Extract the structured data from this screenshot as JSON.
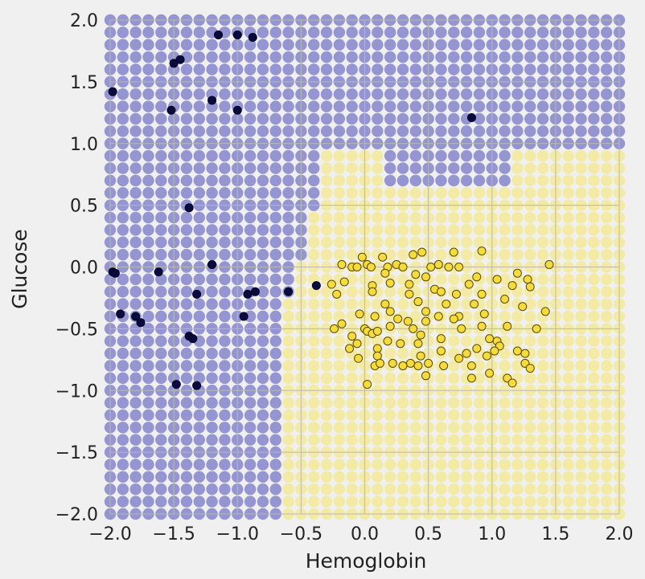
{
  "chart_data": {
    "type": "scatter",
    "title": "",
    "xlabel": "Hemoglobin",
    "ylabel": "Glucose",
    "xlim": [
      -2.0,
      2.0
    ],
    "ylim": [
      -2.0,
      2.0
    ],
    "xticks": [
      "−2.0",
      "−1.5",
      "−1.0",
      "−0.5",
      "0.0",
      "0.5",
      "1.0",
      "1.5",
      "2.0"
    ],
    "yticks": [
      "−2.0",
      "−1.5",
      "−1.0",
      "−0.5",
      "0.0",
      "0.5",
      "1.0",
      "1.5",
      "2.0"
    ],
    "grid": true,
    "background_grid": {
      "step": 0.1,
      "colors": {
        "class_0": "#8f8fd0",
        "class_1": "#f3ea98"
      },
      "boundary_note": "class_1 region: x >= -0.6 and y <= 0.7 (approx), with extension up to y~0.9 for x in [-0.3, 0.2] and x >= 1.2"
    },
    "series": [
      {
        "color": "#0a0a40",
        "points": [
          [
            -1.15,
            1.88
          ],
          [
            -1.0,
            1.88
          ],
          [
            -0.88,
            1.86
          ],
          [
            -1.5,
            1.65
          ],
          [
            -1.45,
            1.68
          ],
          [
            -1.98,
            1.42
          ],
          [
            -1.52,
            1.27
          ],
          [
            -1.2,
            1.35
          ],
          [
            -1.0,
            1.27
          ],
          [
            0.84,
            1.21
          ],
          [
            -1.38,
            0.48
          ],
          [
            -1.2,
            0.02
          ],
          [
            -1.98,
            -0.04
          ],
          [
            -1.96,
            -0.05
          ],
          [
            -1.62,
            -0.04
          ],
          [
            -1.32,
            -0.22
          ],
          [
            -0.92,
            -0.22
          ],
          [
            -0.86,
            -0.2
          ],
          [
            -0.6,
            -0.2
          ],
          [
            -0.38,
            -0.15
          ],
          [
            -1.92,
            -0.38
          ],
          [
            -1.8,
            -0.4
          ],
          [
            -1.76,
            -0.45
          ],
          [
            -0.95,
            -0.4
          ],
          [
            -1.38,
            -0.56
          ],
          [
            -1.35,
            -0.58
          ],
          [
            -1.48,
            -0.95
          ],
          [
            -1.32,
            -0.96
          ]
        ]
      },
      {
        "color": "#f5dc3c",
        "points": [
          [
            0.45,
            0.12
          ],
          [
            0.7,
            0.12
          ],
          [
            0.92,
            0.13
          ],
          [
            -0.02,
            0.08
          ],
          [
            0.14,
            0.08
          ],
          [
            0.38,
            0.1
          ],
          [
            -0.18,
            0.02
          ],
          [
            -0.1,
            0.0
          ],
          [
            -0.06,
            0.0
          ],
          [
            0.02,
            0.02
          ],
          [
            0.05,
            0.0
          ],
          [
            0.18,
            0.0
          ],
          [
            0.25,
            0.02
          ],
          [
            0.3,
            0.0
          ],
          [
            0.52,
            0.0
          ],
          [
            0.58,
            0.02
          ],
          [
            0.66,
            0.0
          ],
          [
            0.74,
            0.0
          ],
          [
            1.45,
            0.02
          ],
          [
            0.16,
            -0.05
          ],
          [
            0.4,
            -0.06
          ],
          [
            0.48,
            -0.08
          ],
          [
            0.88,
            -0.08
          ],
          [
            1.2,
            -0.05
          ],
          [
            1.28,
            -0.1
          ],
          [
            -0.26,
            -0.14
          ],
          [
            -0.16,
            -0.12
          ],
          [
            0.06,
            -0.15
          ],
          [
            0.2,
            -0.13
          ],
          [
            0.35,
            -0.14
          ],
          [
            0.55,
            -0.18
          ],
          [
            0.82,
            -0.14
          ],
          [
            1.04,
            -0.1
          ],
          [
            1.16,
            -0.15
          ],
          [
            1.3,
            -0.16
          ],
          [
            -0.22,
            -0.22
          ],
          [
            0.06,
            -0.2
          ],
          [
            0.35,
            -0.22
          ],
          [
            0.6,
            -0.2
          ],
          [
            0.72,
            -0.22
          ],
          [
            0.92,
            -0.22
          ],
          [
            1.1,
            -0.26
          ],
          [
            0.16,
            -0.3
          ],
          [
            0.42,
            -0.28
          ],
          [
            0.64,
            -0.3
          ],
          [
            0.86,
            -0.3
          ],
          [
            1.24,
            -0.32
          ],
          [
            -0.04,
            -0.38
          ],
          [
            0.2,
            -0.36
          ],
          [
            0.48,
            -0.36
          ],
          [
            0.74,
            -0.4
          ],
          [
            0.94,
            -0.38
          ],
          [
            1.42,
            -0.36
          ],
          [
            0.08,
            -0.4
          ],
          [
            0.26,
            -0.42
          ],
          [
            0.34,
            -0.44
          ],
          [
            0.58,
            -0.4
          ],
          [
            0.7,
            -0.42
          ],
          [
            -0.24,
            -0.5
          ],
          [
            -0.18,
            -0.46
          ],
          [
            0.0,
            -0.5
          ],
          [
            0.2,
            -0.48
          ],
          [
            0.38,
            -0.5
          ],
          [
            0.48,
            -0.44
          ],
          [
            0.76,
            -0.5
          ],
          [
            0.92,
            -0.48
          ],
          [
            1.12,
            -0.48
          ],
          [
            1.35,
            -0.5
          ],
          [
            -0.1,
            -0.56
          ],
          [
            0.02,
            -0.52
          ],
          [
            0.06,
            -0.54
          ],
          [
            0.1,
            -0.52
          ],
          [
            0.18,
            -0.6
          ],
          [
            0.44,
            -0.55
          ],
          [
            0.6,
            -0.58
          ],
          [
            0.98,
            -0.58
          ],
          [
            1.04,
            -0.6
          ],
          [
            0.28,
            -0.62
          ],
          [
            0.42,
            -0.62
          ],
          [
            1.06,
            -0.64
          ],
          [
            -0.12,
            -0.66
          ],
          [
            -0.06,
            -0.62
          ],
          [
            0.1,
            -0.66
          ],
          [
            0.6,
            -0.68
          ],
          [
            0.8,
            -0.7
          ],
          [
            0.88,
            -0.66
          ],
          [
            1.02,
            -0.68
          ],
          [
            1.2,
            -0.68
          ],
          [
            1.26,
            -0.7
          ],
          [
            0.44,
            -0.72
          ],
          [
            0.74,
            -0.74
          ],
          [
            0.96,
            -0.72
          ],
          [
            -0.05,
            -0.74
          ],
          [
            0.1,
            -0.72
          ],
          [
            0.22,
            -0.78
          ],
          [
            0.36,
            -0.78
          ],
          [
            0.42,
            -0.8
          ],
          [
            0.5,
            -0.78
          ],
          [
            0.62,
            -0.8
          ],
          [
            0.84,
            -0.8
          ],
          [
            1.26,
            -0.78
          ],
          [
            1.3,
            -0.82
          ],
          [
            0.08,
            -0.8
          ],
          [
            0.12,
            -0.78
          ],
          [
            0.3,
            -0.8
          ],
          [
            0.48,
            -0.88
          ],
          [
            0.98,
            -0.86
          ],
          [
            1.12,
            -0.9
          ],
          [
            1.16,
            -0.94
          ],
          [
            0.02,
            -0.95
          ],
          [
            0.84,
            -0.9
          ]
        ]
      }
    ]
  }
}
